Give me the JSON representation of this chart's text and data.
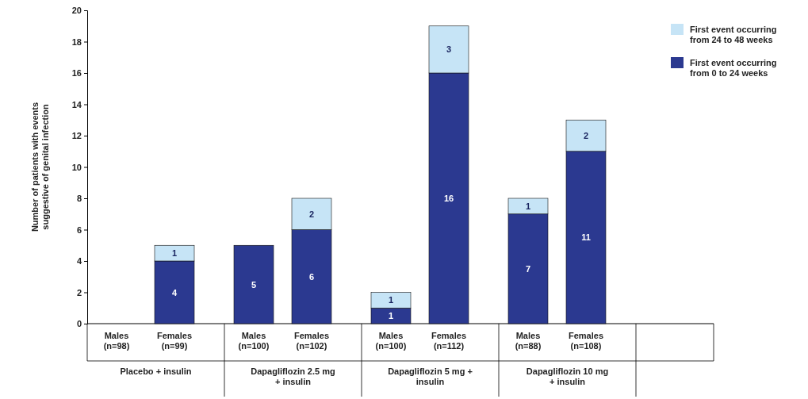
{
  "chart_data": {
    "type": "bar",
    "stacked": true,
    "ylabel": "Number of patients with events suggestive of genital infection",
    "categories": [
      "Males (n=98)",
      "Females (n=99)",
      "Males (n=100)",
      "Females (n=102)",
      "Males (n=100)",
      "Females (n=112)",
      "Males (n=88)",
      "Females (n=108)"
    ],
    "series": [
      {
        "name": "First event occurring from 0 to 24 weeks",
        "color": "#2b3990",
        "values": [
          0,
          4,
          5,
          6,
          1,
          16,
          7,
          11
        ],
        "value_labels": [
          null,
          "4",
          "5",
          "6",
          "1",
          "16",
          "7",
          "11"
        ]
      },
      {
        "name": "First event occurring from 24 to 48 weeks",
        "color": "#c6e4f6",
        "values": [
          0,
          1,
          0,
          2,
          1,
          3,
          1,
          2
        ],
        "value_labels": [
          null,
          "1",
          null,
          "2",
          "1",
          "3",
          "1",
          "2"
        ]
      }
    ],
    "annotations": [
      "Placebo + insulin",
      "Dapagliflozin 2.5 mg + insulin",
      "Dapagliflozin 5 mg + insulin",
      "Dapagliflozin 10 mg + insulin"
    ],
    "ylim": [
      0,
      20
    ],
    "yticks": [
      0,
      2,
      4,
      6,
      8,
      10,
      12,
      14,
      16,
      18,
      20
    ],
    "legend": "top right"
  }
}
